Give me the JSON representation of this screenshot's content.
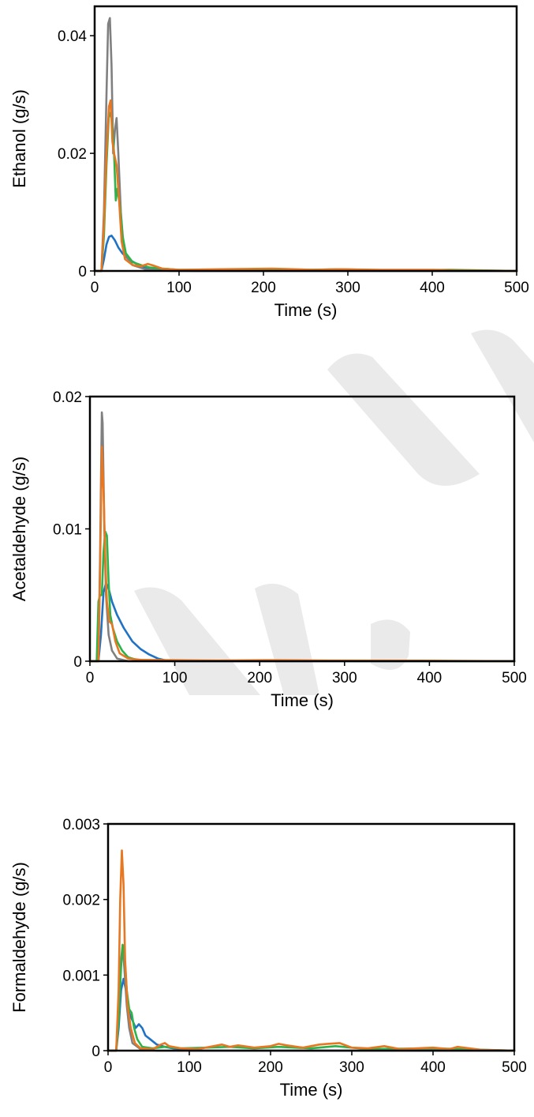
{
  "colors": {
    "blue": "#1f72c4",
    "orange": "#e87722",
    "gray": "#808080",
    "green": "#2db34a",
    "black": "#000000",
    "watermark": "#e6e6e6"
  },
  "chart_data": [
    {
      "type": "line",
      "xlabel": "Time (s)",
      "ylabel": "Ethanol (g/s)",
      "xlim": [
        0,
        500
      ],
      "ylim": [
        0,
        0.045
      ],
      "x_ticks": [
        0,
        100,
        200,
        300,
        400,
        500
      ],
      "y_ticks": [
        0,
        0.02,
        0.04
      ],
      "y_tick_labels": [
        "0",
        "0.02",
        "0.04"
      ],
      "grid": false,
      "series": [
        {
          "color": "#000000",
          "points": [
            [
              0,
              0
            ],
            [
              500,
              0
            ]
          ]
        },
        {
          "color": "#1f72c4",
          "points": [
            [
              0,
              0
            ],
            [
              8,
              0
            ],
            [
              11,
              0.002
            ],
            [
              14,
              0.0045
            ],
            [
              17,
              0.0058
            ],
            [
              20,
              0.006
            ],
            [
              24,
              0.0052
            ],
            [
              28,
              0.004
            ],
            [
              33,
              0.003
            ],
            [
              40,
              0.002
            ],
            [
              50,
              0.0012
            ],
            [
              60,
              0.0006
            ],
            [
              75,
              0.0002
            ],
            [
              90,
              0.0001
            ],
            [
              120,
              0
            ],
            [
              500,
              0
            ]
          ]
        },
        {
          "color": "#808080",
          "points": [
            [
              0,
              0
            ],
            [
              8,
              0
            ],
            [
              11,
              0.01
            ],
            [
              14,
              0.03
            ],
            [
              16,
              0.042
            ],
            [
              18,
              0.043
            ],
            [
              20,
              0.035
            ],
            [
              22,
              0.02
            ],
            [
              24,
              0.024
            ],
            [
              26,
              0.026
            ],
            [
              28,
              0.02
            ],
            [
              31,
              0.01
            ],
            [
              35,
              0.003
            ],
            [
              45,
              0.001
            ],
            [
              60,
              0.0003
            ],
            [
              90,
              0
            ],
            [
              500,
              0
            ]
          ]
        },
        {
          "color": "#2db34a",
          "points": [
            [
              0,
              0
            ],
            [
              8,
              0
            ],
            [
              11,
              0.006
            ],
            [
              14,
              0.018
            ],
            [
              17,
              0.027
            ],
            [
              20,
              0.026
            ],
            [
              23,
              0.02
            ],
            [
              25,
              0.012
            ],
            [
              27,
              0.014
            ],
            [
              30,
              0.011
            ],
            [
              33,
              0.006
            ],
            [
              37,
              0.003
            ],
            [
              45,
              0.0015
            ],
            [
              55,
              0.001
            ],
            [
              65,
              0.0006
            ],
            [
              80,
              0.0004
            ],
            [
              100,
              0.0002
            ],
            [
              150,
              0.0002
            ],
            [
              200,
              0.0003
            ],
            [
              250,
              0.0002
            ],
            [
              290,
              0.0003
            ],
            [
              350,
              0.0001
            ],
            [
              420,
              0.0002
            ],
            [
              500,
              0
            ]
          ]
        },
        {
          "color": "#e87722",
          "points": [
            [
              0,
              0
            ],
            [
              8,
              0
            ],
            [
              11,
              0.008
            ],
            [
              14,
              0.02
            ],
            [
              17,
              0.028
            ],
            [
              19,
              0.029
            ],
            [
              21,
              0.022
            ],
            [
              23,
              0.02
            ],
            [
              26,
              0.018
            ],
            [
              29,
              0.012
            ],
            [
              32,
              0.005
            ],
            [
              36,
              0.002
            ],
            [
              45,
              0.001
            ],
            [
              55,
              0.0008
            ],
            [
              63,
              0.0012
            ],
            [
              70,
              0.0009
            ],
            [
              80,
              0.0004
            ],
            [
              100,
              0.0002
            ],
            [
              150,
              0.0003
            ],
            [
              210,
              0.0004
            ],
            [
              260,
              0.0002
            ],
            [
              290,
              0.0003
            ],
            [
              340,
              0.0002
            ],
            [
              400,
              0.0002
            ],
            [
              430,
              0.0001
            ],
            [
              500,
              0
            ]
          ]
        }
      ]
    },
    {
      "type": "line",
      "xlabel": "Time (s)",
      "ylabel": "Acetaldehyde (g/s)",
      "xlim": [
        0,
        500
      ],
      "ylim": [
        0,
        0.02
      ],
      "x_ticks": [
        0,
        100,
        200,
        300,
        400,
        500
      ],
      "y_ticks": [
        0,
        0.01,
        0.02
      ],
      "y_tick_labels": [
        "0",
        "0.01",
        "0.02"
      ],
      "grid": false,
      "series": [
        {
          "color": "#000000",
          "points": [
            [
              0,
              0
            ],
            [
              500,
              0
            ]
          ]
        },
        {
          "color": "#1f72c4",
          "points": [
            [
              0,
              0
            ],
            [
              10,
              0
            ],
            [
              13,
              0.002
            ],
            [
              16,
              0.0052
            ],
            [
              19,
              0.0059
            ],
            [
              22,
              0.0055
            ],
            [
              26,
              0.0045
            ],
            [
              32,
              0.0035
            ],
            [
              40,
              0.0025
            ],
            [
              50,
              0.0015
            ],
            [
              60,
              0.0009
            ],
            [
              70,
              0.0005
            ],
            [
              80,
              0.0002
            ],
            [
              90,
              5e-05
            ],
            [
              110,
              0
            ],
            [
              500,
              0
            ]
          ]
        },
        {
          "color": "#808080",
          "points": [
            [
              0,
              0
            ],
            [
              10,
              0
            ],
            [
              12,
              0.008
            ],
            [
              14,
              0.0188
            ],
            [
              15,
              0.018
            ],
            [
              17,
              0.01
            ],
            [
              19,
              0.005
            ],
            [
              22,
              0.002
            ],
            [
              26,
              0.0008
            ],
            [
              32,
              0.0002
            ],
            [
              45,
              0
            ],
            [
              500,
              0
            ]
          ]
        },
        {
          "color": "#2db34a",
          "points": [
            [
              0,
              0
            ],
            [
              8,
              0
            ],
            [
              10,
              0.0045
            ],
            [
              12,
              0.005
            ],
            [
              14,
              0.005
            ],
            [
              16,
              0.0082
            ],
            [
              18,
              0.0098
            ],
            [
              20,
              0.0095
            ],
            [
              22,
              0.006
            ],
            [
              24,
              0.0035
            ],
            [
              27,
              0.0025
            ],
            [
              32,
              0.0015
            ],
            [
              38,
              0.0008
            ],
            [
              45,
              0.0003
            ],
            [
              55,
              0.0001
            ],
            [
              100,
              3e-05
            ],
            [
              300,
              3e-05
            ],
            [
              500,
              0
            ]
          ]
        },
        {
          "color": "#e87722",
          "points": [
            [
              0,
              0
            ],
            [
              10,
              0
            ],
            [
              12,
              0.007
            ],
            [
              14,
              0.0162
            ],
            [
              16,
              0.013
            ],
            [
              18,
              0.008
            ],
            [
              20,
              0.0045
            ],
            [
              23,
              0.003
            ],
            [
              26,
              0.0028
            ],
            [
              30,
              0.0015
            ],
            [
              35,
              0.0006
            ],
            [
              45,
              0.0002
            ],
            [
              60,
              0.0001
            ],
            [
              150,
              5e-05
            ],
            [
              210,
              8e-05
            ],
            [
              280,
              5e-05
            ],
            [
              390,
              4e-05
            ],
            [
              500,
              0
            ]
          ]
        }
      ]
    },
    {
      "type": "line",
      "xlabel": "Time (s)",
      "ylabel": "Formaldehyde (g/s)",
      "xlim": [
        0,
        500
      ],
      "ylim": [
        0,
        0.003
      ],
      "x_ticks": [
        0,
        100,
        200,
        300,
        400,
        500
      ],
      "y_ticks": [
        0,
        0.001,
        0.002,
        0.003
      ],
      "y_tick_labels": [
        "0",
        "0.001",
        "0.002",
        "0.003"
      ],
      "grid": false,
      "series": [
        {
          "color": "#000000",
          "points": [
            [
              0,
              0
            ],
            [
              500,
              0
            ]
          ]
        },
        {
          "color": "#1f72c4",
          "points": [
            [
              0,
              0
            ],
            [
              10,
              0
            ],
            [
              13,
              0.0003
            ],
            [
              16,
              0.0008
            ],
            [
              19,
              0.00095
            ],
            [
              22,
              0.0008
            ],
            [
              26,
              0.0005
            ],
            [
              30,
              0.0004
            ],
            [
              34,
              0.0003
            ],
            [
              38,
              0.00035
            ],
            [
              42,
              0.0003
            ],
            [
              46,
              0.0002
            ],
            [
              52,
              0.00015
            ],
            [
              60,
              8e-05
            ],
            [
              70,
              5e-05
            ],
            [
              80,
              3e-05
            ],
            [
              100,
              0
            ],
            [
              500,
              0
            ]
          ]
        },
        {
          "color": "#808080",
          "points": [
            [
              0,
              0
            ],
            [
              10,
              0
            ],
            [
              13,
              0.0005
            ],
            [
              16,
              0.0012
            ],
            [
              18,
              0.0014
            ],
            [
              20,
              0.0011
            ],
            [
              23,
              0.0006
            ],
            [
              26,
              0.0003
            ],
            [
              30,
              0.0001
            ],
            [
              40,
              2e-05
            ],
            [
              60,
              0
            ],
            [
              500,
              0
            ]
          ]
        },
        {
          "color": "#2db34a",
          "points": [
            [
              0,
              0
            ],
            [
              10,
              0
            ],
            [
              13,
              0.0004
            ],
            [
              16,
              0.0011
            ],
            [
              18,
              0.0014
            ],
            [
              20,
              0.0013
            ],
            [
              23,
              0.0008
            ],
            [
              26,
              0.00055
            ],
            [
              29,
              0.0005
            ],
            [
              32,
              0.0003
            ],
            [
              36,
              0.00015
            ],
            [
              42,
              5e-05
            ],
            [
              55,
              3e-05
            ],
            [
              70,
              5e-05
            ],
            [
              90,
              3e-05
            ],
            [
              120,
              4e-05
            ],
            [
              150,
              5e-05
            ],
            [
              180,
              3e-05
            ],
            [
              210,
              5e-05
            ],
            [
              250,
              3e-05
            ],
            [
              280,
              6e-05
            ],
            [
              320,
              2e-05
            ],
            [
              400,
              3e-05
            ],
            [
              500,
              0
            ]
          ]
        },
        {
          "color": "#e87722",
          "points": [
            [
              0,
              0
            ],
            [
              10,
              0
            ],
            [
              13,
              0.0008
            ],
            [
              15,
              0.002
            ],
            [
              17,
              0.00265
            ],
            [
              19,
              0.0022
            ],
            [
              21,
              0.0012
            ],
            [
              24,
              0.0006
            ],
            [
              28,
              0.0003
            ],
            [
              33,
              0.0001
            ],
            [
              40,
              3e-05
            ],
            [
              55,
              2e-05
            ],
            [
              65,
              8e-05
            ],
            [
              70,
              0.0001
            ],
            [
              75,
              6e-05
            ],
            [
              90,
              3e-05
            ],
            [
              110,
              2e-05
            ],
            [
              140,
              8e-05
            ],
            [
              150,
              5e-05
            ],
            [
              160,
              7e-05
            ],
            [
              180,
              4e-05
            ],
            [
              200,
              6e-05
            ],
            [
              210,
              9e-05
            ],
            [
              220,
              7e-05
            ],
            [
              240,
              4e-05
            ],
            [
              260,
              8e-05
            ],
            [
              270,
              9e-05
            ],
            [
              285,
              0.0001
            ],
            [
              300,
              4e-05
            ],
            [
              320,
              3e-05
            ],
            [
              340,
              6e-05
            ],
            [
              360,
              2e-05
            ],
            [
              380,
              3e-05
            ],
            [
              400,
              4e-05
            ],
            [
              420,
              2e-05
            ],
            [
              430,
              5e-05
            ],
            [
              460,
              1e-05
            ],
            [
              500,
              0
            ]
          ]
        }
      ]
    }
  ]
}
